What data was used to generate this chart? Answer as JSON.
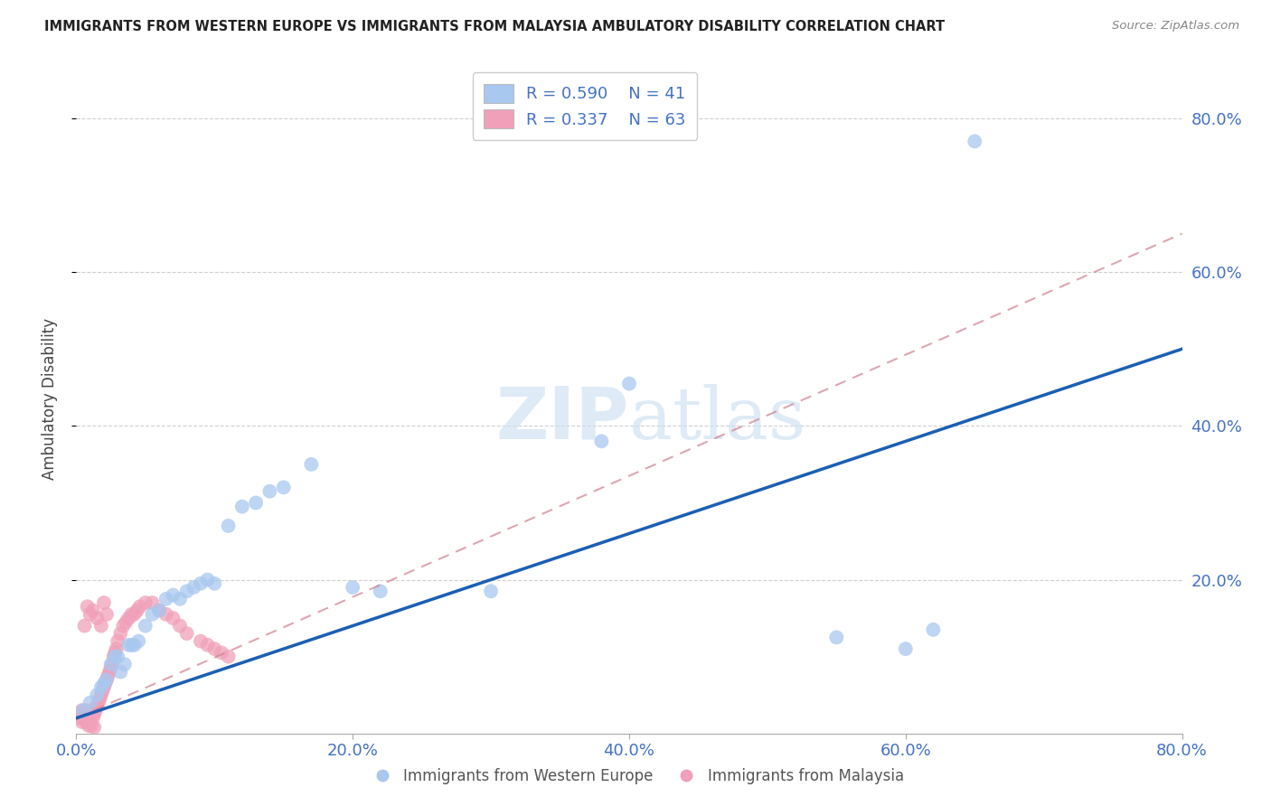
{
  "title": "IMMIGRANTS FROM WESTERN EUROPE VS IMMIGRANTS FROM MALAYSIA AMBULATORY DISABILITY CORRELATION CHART",
  "source": "Source: ZipAtlas.com",
  "ylabel": "Ambulatory Disability",
  "xlim": [
    0,
    0.8
  ],
  "ylim": [
    0,
    0.87
  ],
  "xticks": [
    0.0,
    0.2,
    0.4,
    0.6,
    0.8
  ],
  "xticklabels": [
    "0.0%",
    "20.0%",
    "40.0%",
    "60.0%",
    "80.0%"
  ],
  "ytick_positions": [
    0.2,
    0.4,
    0.6,
    0.8
  ],
  "yticklabels_right": [
    "20.0%",
    "40.0%",
    "60.0%",
    "80.0%"
  ],
  "legend_r1": "R = 0.590",
  "legend_n1": "N = 41",
  "legend_r2": "R = 0.337",
  "legend_n2": "N = 63",
  "blue_color": "#a8c8f0",
  "pink_color": "#f0a0b8",
  "blue_line_color": "#1a5fb4",
  "pink_line_color": "#d08090",
  "watermark_color": "#c8dff0",
  "blue_x": [
    0.005,
    0.01,
    0.015,
    0.018,
    0.02,
    0.022,
    0.025,
    0.028,
    0.03,
    0.032,
    0.035,
    0.038,
    0.04,
    0.042,
    0.045,
    0.05,
    0.055,
    0.06,
    0.065,
    0.07,
    0.075,
    0.08,
    0.085,
    0.09,
    0.095,
    0.1,
    0.11,
    0.12,
    0.13,
    0.14,
    0.15,
    0.17,
    0.2,
    0.22,
    0.3,
    0.38,
    0.4,
    0.55,
    0.6,
    0.62,
    0.65
  ],
  "blue_y": [
    0.03,
    0.04,
    0.05,
    0.06,
    0.065,
    0.07,
    0.09,
    0.1,
    0.1,
    0.08,
    0.09,
    0.115,
    0.115,
    0.115,
    0.12,
    0.14,
    0.155,
    0.16,
    0.175,
    0.18,
    0.175,
    0.185,
    0.19,
    0.195,
    0.2,
    0.195,
    0.27,
    0.295,
    0.3,
    0.315,
    0.32,
    0.35,
    0.19,
    0.185,
    0.185,
    0.38,
    0.455,
    0.125,
    0.11,
    0.135,
    0.77
  ],
  "pink_x": [
    0.003,
    0.004,
    0.005,
    0.006,
    0.007,
    0.008,
    0.009,
    0.01,
    0.011,
    0.012,
    0.013,
    0.014,
    0.015,
    0.016,
    0.017,
    0.018,
    0.019,
    0.02,
    0.021,
    0.022,
    0.023,
    0.024,
    0.025,
    0.026,
    0.027,
    0.028,
    0.029,
    0.03,
    0.032,
    0.034,
    0.036,
    0.038,
    0.04,
    0.042,
    0.044,
    0.046,
    0.05,
    0.055,
    0.06,
    0.065,
    0.07,
    0.075,
    0.08,
    0.09,
    0.095,
    0.1,
    0.105,
    0.11,
    0.012,
    0.015,
    0.018,
    0.02,
    0.022,
    0.008,
    0.01,
    0.006,
    0.004,
    0.003,
    0.005,
    0.007,
    0.009,
    0.011,
    0.013
  ],
  "pink_y": [
    0.02,
    0.015,
    0.025,
    0.018,
    0.03,
    0.02,
    0.015,
    0.025,
    0.03,
    0.02,
    0.025,
    0.03,
    0.035,
    0.04,
    0.045,
    0.05,
    0.055,
    0.06,
    0.065,
    0.07,
    0.075,
    0.08,
    0.085,
    0.09,
    0.1,
    0.105,
    0.11,
    0.12,
    0.13,
    0.14,
    0.145,
    0.15,
    0.155,
    0.155,
    0.16,
    0.165,
    0.17,
    0.17,
    0.16,
    0.155,
    0.15,
    0.14,
    0.13,
    0.12,
    0.115,
    0.11,
    0.105,
    0.1,
    0.16,
    0.15,
    0.14,
    0.17,
    0.155,
    0.165,
    0.155,
    0.14,
    0.03,
    0.025,
    0.02,
    0.015,
    0.01,
    0.01,
    0.008
  ],
  "blue_line_x": [
    0.0,
    0.8
  ],
  "blue_line_y": [
    0.02,
    0.5
  ],
  "pink_line_x": [
    0.0,
    0.8
  ],
  "pink_line_y": [
    0.02,
    0.65
  ]
}
